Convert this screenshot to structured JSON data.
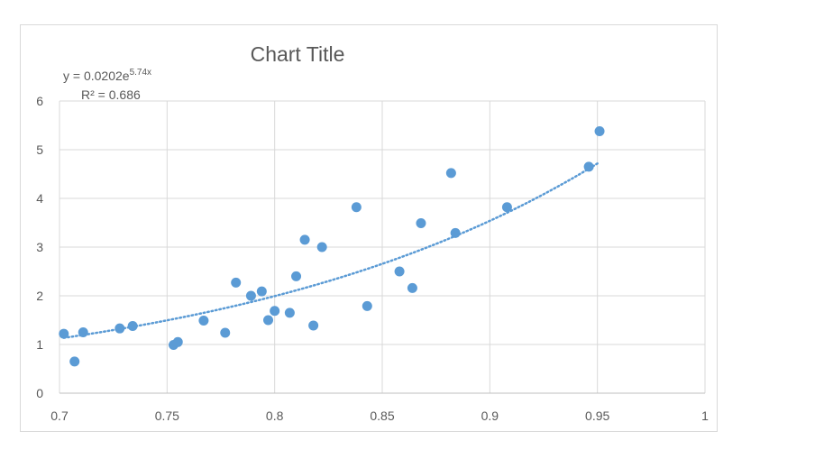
{
  "chart_data": {
    "type": "scatter",
    "title": "Chart Title",
    "xlabel": "",
    "ylabel": "",
    "xlim": [
      0.7,
      1
    ],
    "ylim": [
      0,
      6
    ],
    "x_ticks": [
      "0.7",
      "0.75",
      "0.8",
      "0.85",
      "0.9",
      "0.95",
      "1"
    ],
    "y_ticks": [
      "0",
      "1",
      "2",
      "3",
      "4",
      "5",
      "6"
    ],
    "grid": true,
    "marker_color": "#5b9bd5",
    "trendline_color": "#5b9bd5",
    "trendline": {
      "type": "exponential",
      "a": 0.0202,
      "b": 5.74,
      "x_range": [
        0.702,
        0.951
      ],
      "equation_prefix": "y = 0.0202e",
      "equation_exponent": "5.74x",
      "r_squared_label": "R² = 0.686"
    },
    "points": [
      {
        "x": 0.702,
        "y": 1.22
      },
      {
        "x": 0.707,
        "y": 0.65
      },
      {
        "x": 0.711,
        "y": 1.25
      },
      {
        "x": 0.728,
        "y": 1.33
      },
      {
        "x": 0.734,
        "y": 1.38
      },
      {
        "x": 0.753,
        "y": 0.99
      },
      {
        "x": 0.755,
        "y": 1.05
      },
      {
        "x": 0.767,
        "y": 1.49
      },
      {
        "x": 0.777,
        "y": 1.24
      },
      {
        "x": 0.782,
        "y": 2.27
      },
      {
        "x": 0.789,
        "y": 2.0
      },
      {
        "x": 0.794,
        "y": 2.09
      },
      {
        "x": 0.797,
        "y": 1.5
      },
      {
        "x": 0.8,
        "y": 1.69
      },
      {
        "x": 0.807,
        "y": 1.65
      },
      {
        "x": 0.81,
        "y": 2.4
      },
      {
        "x": 0.814,
        "y": 3.15
      },
      {
        "x": 0.818,
        "y": 1.39
      },
      {
        "x": 0.822,
        "y": 3.0
      },
      {
        "x": 0.838,
        "y": 3.82
      },
      {
        "x": 0.843,
        "y": 1.79
      },
      {
        "x": 0.858,
        "y": 2.5
      },
      {
        "x": 0.864,
        "y": 2.16
      },
      {
        "x": 0.868,
        "y": 3.49
      },
      {
        "x": 0.882,
        "y": 4.52
      },
      {
        "x": 0.884,
        "y": 3.29
      },
      {
        "x": 0.908,
        "y": 3.82
      },
      {
        "x": 0.946,
        "y": 4.65
      },
      {
        "x": 0.951,
        "y": 5.38
      }
    ]
  }
}
